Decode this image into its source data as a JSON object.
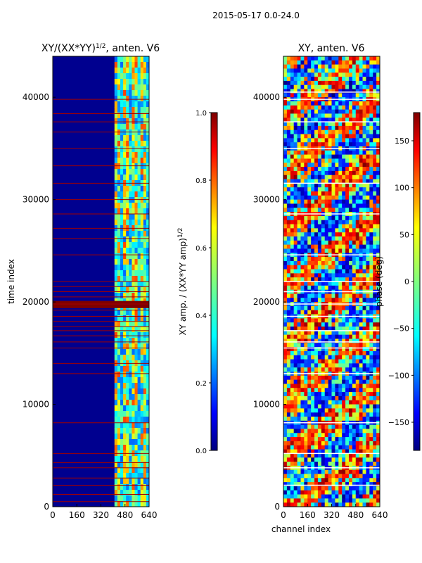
{
  "figure_title": "2015-05-17 0.0-24.0",
  "colors": {
    "background": "#ffffff",
    "axis": "#000000",
    "jet_dark_blue": "#00007f",
    "jet_blue": "#0000ff",
    "jet_cyan": "#00ffff",
    "jet_green": "#7fff7f",
    "jet_yellow": "#ffff00",
    "jet_orange": "#ff7f00",
    "jet_red": "#ff0000",
    "jet_dark_red": "#7f0000"
  },
  "chart_data": [
    {
      "type": "heatmap",
      "title": "XY/(XX*YY)^1/2, anten. V6",
      "title_parts": [
        "XY/(XX*YY)",
        "1/2",
        ", anten. V6"
      ],
      "xlabel": "",
      "ylabel": "time index",
      "xlim": [
        0,
        640
      ],
      "ylim": [
        0,
        44000
      ],
      "x_ticks": [
        0,
        160,
        320,
        480,
        640
      ],
      "y_ticks": [
        0,
        10000,
        20000,
        30000,
        40000
      ],
      "grid": false,
      "colormap": "jet",
      "value_range": [
        0.0,
        1.0
      ],
      "description_bands": {
        "low_amplitude_channels": [
          0,
          410
        ],
        "high_amplitude_channels": [
          410,
          640
        ]
      },
      "flagged_time_rows": [
        500,
        1200,
        2100,
        2800,
        3800,
        4300,
        5200,
        8200,
        13000,
        14000,
        15500,
        16100,
        16700,
        17200,
        17600,
        18100,
        18600,
        19200,
        19800,
        20500,
        21000,
        21500,
        22000,
        24600,
        26200,
        27200,
        28600,
        30000,
        31600,
        33300,
        35000,
        36600,
        37600,
        38400,
        39800
      ],
      "colorbar": {
        "label": "XY amp. / (XX*YY amp)^1/2",
        "label_parts": [
          "XY amp. / (XX*YY amp)",
          "1/2"
        ],
        "ticks": [
          "0.0",
          "0.2",
          "0.4",
          "0.6",
          "0.8",
          "1.0"
        ],
        "range": [
          0.0,
          1.0
        ]
      }
    },
    {
      "type": "heatmap",
      "title": "XY, anten. V6",
      "xlabel": "channel index",
      "ylabel": "",
      "xlim": [
        0,
        640
      ],
      "ylim": [
        0,
        44000
      ],
      "x_ticks": [
        0,
        160,
        320,
        480,
        640
      ],
      "y_ticks": [
        0,
        10000,
        20000,
        30000,
        40000
      ],
      "grid": false,
      "colormap": "jet",
      "value_range": [
        -180,
        180
      ],
      "flagged_time_rows": [
        2100,
        3800,
        5200,
        8200,
        13000,
        15500,
        16100,
        17200,
        18600,
        19800,
        21000,
        22000,
        24600,
        28600,
        31600,
        35000,
        37600,
        39800,
        40500
      ],
      "colorbar": {
        "label": "phase (deg)",
        "ticks": [
          "−150",
          "−100",
          "−50",
          "0",
          "50",
          "100",
          "150"
        ],
        "tick_values": [
          -150,
          -100,
          -50,
          0,
          50,
          100,
          150
        ],
        "range": [
          -180,
          180
        ]
      }
    }
  ]
}
